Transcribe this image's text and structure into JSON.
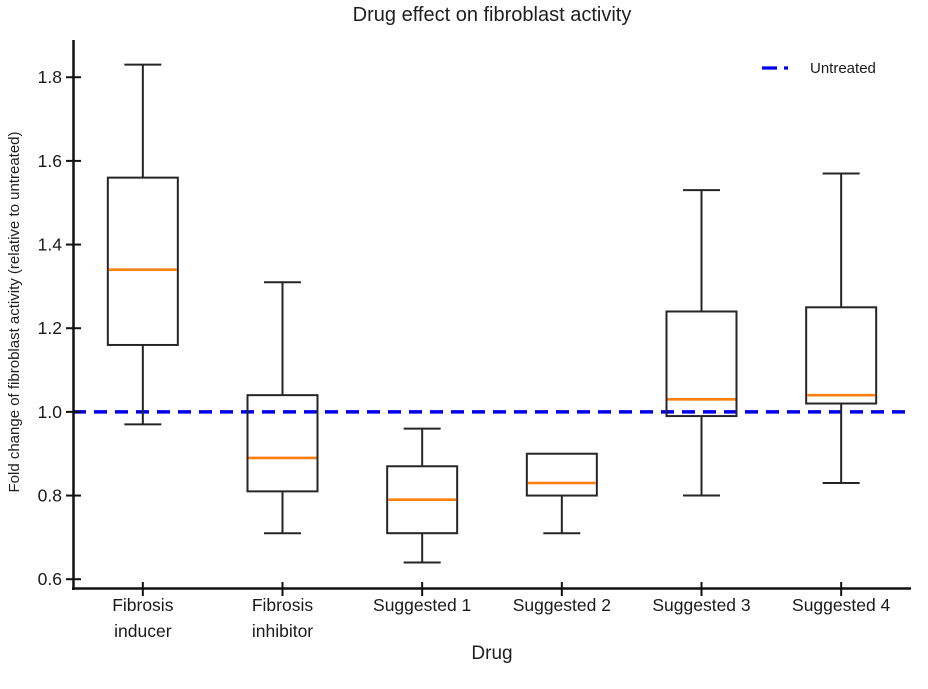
{
  "chart_data": {
    "type": "boxplot",
    "title": "Drug effect on fibroblast activity",
    "xlabel": "Drug",
    "ylabel": "Fold change of fibroblast activity (relative to untreated)",
    "categories": [
      "Fibrosis\ninducer",
      "Fibrosis\ninhibitor",
      "Suggested 1",
      "Suggested 2",
      "Suggested 3",
      "Suggested 4"
    ],
    "boxes": [
      {
        "label": "Fibrosis inducer",
        "whisker_low": 0.97,
        "q1": 1.16,
        "median": 1.34,
        "q3": 1.56,
        "whisker_high": 1.83
      },
      {
        "label": "Fibrosis inhibitor",
        "whisker_low": 0.71,
        "q1": 0.81,
        "median": 0.89,
        "q3": 1.04,
        "whisker_high": 1.31
      },
      {
        "label": "Suggested 1",
        "whisker_low": 0.64,
        "q1": 0.71,
        "median": 0.79,
        "q3": 0.87,
        "whisker_high": 0.96
      },
      {
        "label": "Suggested 2",
        "whisker_low": 0.71,
        "q1": 0.8,
        "median": 0.83,
        "q3": 0.9,
        "whisker_high": 0.9
      },
      {
        "label": "Suggested 3",
        "whisker_low": 0.8,
        "q1": 0.99,
        "median": 1.03,
        "q3": 1.24,
        "whisker_high": 1.53
      },
      {
        "label": "Suggested 4",
        "whisker_low": 0.83,
        "q1": 1.02,
        "median": 1.04,
        "q3": 1.25,
        "whisker_high": 1.57
      }
    ],
    "reference_line": {
      "value": 1.0,
      "label": "Untreated",
      "color": "#0000ee",
      "style": "dashed"
    },
    "y_ticks": [
      0.6,
      0.8,
      1.0,
      1.2,
      1.4,
      1.6,
      1.8
    ],
    "ylim": [
      0.579,
      1.889
    ],
    "grid": false,
    "legend_position": "top-right",
    "colors": {
      "median": "#ff7f0e",
      "box_edge": "#262626",
      "axis": "#111111",
      "reference": "#0000ee"
    }
  }
}
